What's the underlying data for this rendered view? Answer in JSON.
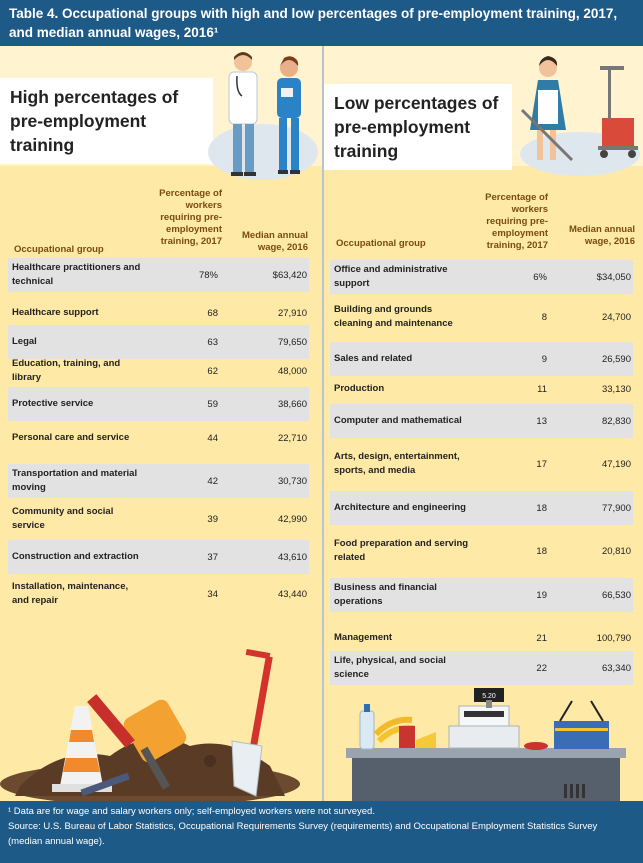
{
  "title": "Table 4. Occupational groups with high and low percentages of pre-employment training, 2017, and median annual wages, 2016¹",
  "high": {
    "heading": "High percentages of pre-employment training",
    "col_group": "Occupational group",
    "col_pct": "Percentage of workers requiring pre-employment training, 2017",
    "col_wage": "Median annual wage, 2016",
    "rows": [
      {
        "group": "Healthcare practitioners and technical",
        "pct": "78%",
        "wage": "$63,420"
      },
      {
        "group": "Healthcare support",
        "pct": "68",
        "wage": "27,910"
      },
      {
        "group": "Legal",
        "pct": "63",
        "wage": "79,650"
      },
      {
        "group": "Education, training, and library",
        "pct": "62",
        "wage": "48,000"
      },
      {
        "group": "Protective service",
        "pct": "59",
        "wage": "38,660"
      },
      {
        "group": "Personal care and service",
        "pct": "44",
        "wage": "22,710"
      },
      {
        "group": "Transportation and material moving",
        "pct": "42",
        "wage": "30,730"
      },
      {
        "group": "Community and social service",
        "pct": "39",
        "wage": "42,990"
      },
      {
        "group": "Construction and extraction",
        "pct": "37",
        "wage": "43,610"
      },
      {
        "group": "Installation, maintenance, and repair",
        "pct": "34",
        "wage": "43,440"
      }
    ]
  },
  "low": {
    "heading": "Low percentages of pre-employment training",
    "col_group": "Occupational group",
    "col_pct": "Percentage of workers requiring pre-employment training, 2017",
    "col_wage": "Median annual wage, 2016",
    "rows": [
      {
        "group": "Office and administrative support",
        "pct": "6%",
        "wage": "$34,050"
      },
      {
        "group": "Building and grounds cleaning and maintenance",
        "pct": "8",
        "wage": "24,700"
      },
      {
        "group": "Sales and related",
        "pct": "9",
        "wage": "26,590"
      },
      {
        "group": "Production",
        "pct": "11",
        "wage": "33,130"
      },
      {
        "group": "Computer and mathematical",
        "pct": "13",
        "wage": "82,830"
      },
      {
        "group": "Arts, design, entertainment, sports, and media",
        "pct": "17",
        "wage": "47,190"
      },
      {
        "group": "Architecture and engineering",
        "pct": "18",
        "wage": "77,900"
      },
      {
        "group": "Food preparation and serving related",
        "pct": "18",
        "wage": "20,810"
      },
      {
        "group": "Business and financial operations",
        "pct": "19",
        "wage": "66,530"
      },
      {
        "group": "Management",
        "pct": "21",
        "wage": "100,790"
      },
      {
        "group": "Life, physical, and social science",
        "pct": "22",
        "wage": "63,340"
      }
    ]
  },
  "register_display": "5.20",
  "footnote": "¹ Data are for wage and salary workers only; self-employed workers were not surveyed.",
  "source": "Source: U.S. Bureau of Labor Statistics, Occupational Requirements Survey (requirements) and Occupational Employment Statistics Survey (median annual wage).",
  "colors": {
    "header_bg": "#1e5a87",
    "panel_bg": "#ffe9a6",
    "row_shade": "#e2e2e2",
    "col_head": "#7a4c12"
  }
}
